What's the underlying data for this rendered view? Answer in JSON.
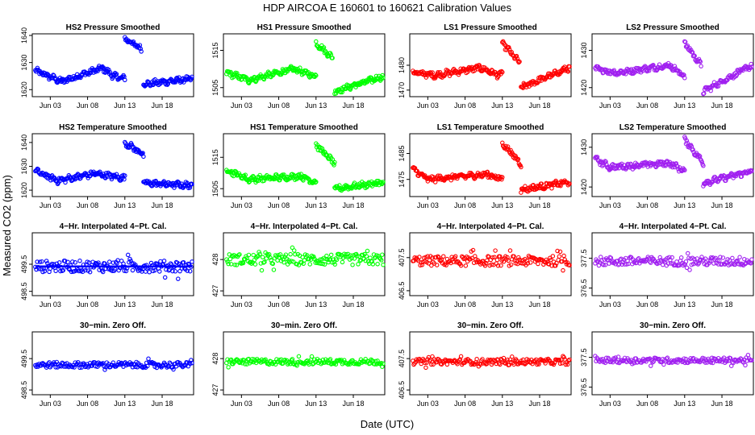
{
  "figure": {
    "title": "HDP   AIRCOA E   160601 to 160621   Calibration Values",
    "xlabel": "Date (UTC)",
    "ylabel": "Measured CO2 (ppm)"
  },
  "colors": {
    "blue": "#0000ff",
    "green": "#00ff00",
    "red": "#ff0000",
    "purple": "#a020f0"
  },
  "chart_data": [
    {
      "type": "scatter",
      "title": "HS2 Pressure Smoothed",
      "color": "blue",
      "ylim": [
        1618,
        1640
      ],
      "yticks": [
        1620,
        1630,
        1640
      ],
      "xticks": [
        "Jun 03",
        "Jun 08",
        "Jun 13",
        "Jun 18"
      ],
      "xtick_days": [
        3,
        8,
        13,
        18
      ],
      "xlim": [
        0.8,
        22
      ],
      "segments": [
        [
          1,
          1627,
          4.5,
          1623
        ],
        [
          4.5,
          1623,
          10,
          1628
        ],
        [
          10,
          1628,
          11.5,
          1625
        ],
        [
          11.5,
          1625,
          13,
          1624
        ],
        [
          13,
          1639,
          15.2,
          1635
        ],
        [
          15.5,
          1622,
          22,
          1624
        ]
      ]
    },
    {
      "type": "scatter",
      "title": "HS1 Pressure Smoothed",
      "color": "green",
      "ylim": [
        1503,
        1519
      ],
      "yticks": [
        1505,
        1515
      ],
      "xticks": [
        "Jun 03",
        "Jun 08",
        "Jun 13",
        "Jun 18"
      ],
      "xtick_days": [
        3,
        8,
        13,
        18
      ],
      "xlim": [
        0.8,
        22
      ],
      "segments": [
        [
          1,
          1509,
          4,
          1507
        ],
        [
          4,
          1507,
          10,
          1510
        ],
        [
          10,
          1510,
          13,
          1508
        ],
        [
          13,
          1517,
          15.2,
          1513
        ],
        [
          15.5,
          1504,
          22,
          1508
        ]
      ]
    },
    {
      "type": "scatter",
      "title": "LS1 Pressure Smoothed",
      "color": "red",
      "ylim": [
        1468,
        1492
      ],
      "yticks": [
        1470,
        1480
      ],
      "xticks": [
        "Jun 03",
        "Jun 08",
        "Jun 13",
        "Jun 18"
      ],
      "xtick_days": [
        3,
        8,
        13,
        18
      ],
      "xlim": [
        0.8,
        22
      ],
      "segments": [
        [
          1,
          1477,
          4,
          1476
        ],
        [
          4,
          1476,
          10,
          1479
        ],
        [
          10,
          1479,
          12.5,
          1476
        ],
        [
          12.5,
          1476,
          13,
          1477
        ],
        [
          13,
          1489,
          15.3,
          1481
        ],
        [
          15.5,
          1471,
          22,
          1479
        ]
      ]
    },
    {
      "type": "scatter",
      "title": "LS2 Pressure Smoothed",
      "color": "purple",
      "ylim": [
        1418,
        1434
      ],
      "yticks": [
        1420,
        1430
      ],
      "xticks": [
        "Jun 03",
        "Jun 08",
        "Jun 13",
        "Jun 18"
      ],
      "xtick_days": [
        3,
        8,
        13,
        18
      ],
      "xlim": [
        0.8,
        22
      ],
      "segments": [
        [
          1,
          1425,
          4,
          1424
        ],
        [
          4,
          1424,
          11,
          1426
        ],
        [
          11,
          1426,
          13,
          1423
        ],
        [
          13,
          1432,
          15.2,
          1426
        ],
        [
          15.5,
          1419,
          22,
          1426
        ]
      ]
    },
    {
      "type": "scatter",
      "title": "HS2 Temperature Smoothed",
      "color": "blue",
      "ylim": [
        1618,
        1643
      ],
      "yticks": [
        1620,
        1630,
        1640
      ],
      "xticks": [
        "Jun 03",
        "Jun 08",
        "Jun 13",
        "Jun 18"
      ],
      "xtick_days": [
        3,
        8,
        13,
        18
      ],
      "xlim": [
        0.8,
        22
      ],
      "segments": [
        [
          1,
          1628,
          4,
          1624
        ],
        [
          4,
          1624,
          9,
          1627
        ],
        [
          9,
          1627,
          13,
          1625
        ],
        [
          13,
          1640,
          15.5,
          1635
        ],
        [
          15.5,
          1623,
          22,
          1622
        ]
      ]
    },
    {
      "type": "scatter",
      "title": "HS1 Temperature Smoothed",
      "color": "green",
      "ylim": [
        1503,
        1522
      ],
      "yticks": [
        1505,
        1515
      ],
      "xticks": [
        "Jun 03",
        "Jun 08",
        "Jun 13",
        "Jun 18"
      ],
      "xtick_days": [
        3,
        8,
        13,
        18
      ],
      "xlim": [
        0.8,
        22
      ],
      "segments": [
        [
          1,
          1511,
          4,
          1508
        ],
        [
          4,
          1508,
          11,
          1509
        ],
        [
          11,
          1509,
          13,
          1507
        ],
        [
          13,
          1519,
          15.5,
          1513
        ],
        [
          15.5,
          1505,
          22,
          1507
        ]
      ]
    },
    {
      "type": "scatter",
      "title": "LS1 Temperature Smoothed",
      "color": "red",
      "ylim": [
        1469,
        1492
      ],
      "yticks": [
        1475,
        1485
      ],
      "xticks": [
        "Jun 03",
        "Jun 08",
        "Jun 13",
        "Jun 18"
      ],
      "xtick_days": [
        3,
        8,
        13,
        18
      ],
      "xlim": [
        0.8,
        22
      ],
      "segments": [
        [
          1,
          1479,
          3,
          1475
        ],
        [
          3,
          1475,
          11,
          1477
        ],
        [
          11,
          1477,
          13,
          1475
        ],
        [
          13,
          1489,
          15.5,
          1481
        ],
        [
          15.5,
          1471,
          22,
          1474
        ]
      ]
    },
    {
      "type": "scatter",
      "title": "LS2 Temperature Smoothed",
      "color": "purple",
      "ylim": [
        1418,
        1433
      ],
      "yticks": [
        1420,
        1430
      ],
      "xticks": [
        "Jun 03",
        "Jun 08",
        "Jun 13",
        "Jun 18"
      ],
      "xtick_days": [
        3,
        8,
        13,
        18
      ],
      "xlim": [
        0.8,
        22
      ],
      "segments": [
        [
          1,
          1427,
          3,
          1425
        ],
        [
          3,
          1425,
          11,
          1426
        ],
        [
          11,
          1426,
          13,
          1424
        ],
        [
          13,
          1432,
          15.5,
          1426
        ],
        [
          15.5,
          1421,
          22,
          1424
        ]
      ]
    },
    {
      "type": "scatter",
      "title": "4−Hr. Interpolated 4−Pt. Cal.",
      "color": "blue",
      "ylim": [
        498.4,
        500.6
      ],
      "yticks": [
        498.5,
        499.5
      ],
      "xticks": [
        "Jun 03",
        "Jun 08",
        "Jun 13",
        "Jun 18"
      ],
      "xtick_days": [
        3,
        8,
        13,
        18
      ],
      "xlim": [
        0.8,
        22
      ],
      "band": {
        "center": 499.42,
        "spread": 0.35,
        "range": [
          1,
          22
        ]
      },
      "line": 499.42
    },
    {
      "type": "scatter",
      "title": "4−Hr. Interpolated 4−Pt. Cal.",
      "color": "green",
      "ylim": [
        426.9,
        428.8
      ],
      "yticks": [
        427.0,
        428.0
      ],
      "xticks": [
        "Jun 03",
        "Jun 08",
        "Jun 13",
        "Jun 18"
      ],
      "xtick_days": [
        3,
        8,
        13,
        18
      ],
      "xlim": [
        0.8,
        22
      ],
      "band": {
        "center": 428.0,
        "spread": 0.3,
        "range": [
          1,
          22
        ]
      }
    },
    {
      "type": "scatter",
      "title": "4−Hr. Interpolated 4−Pt. Cal.",
      "color": "red",
      "ylim": [
        406.4,
        408.2
      ],
      "yticks": [
        406.5,
        407.5
      ],
      "xticks": [
        "Jun 03",
        "Jun 08",
        "Jun 13",
        "Jun 18"
      ],
      "xtick_days": [
        3,
        8,
        13,
        18
      ],
      "xlim": [
        0.8,
        22
      ],
      "band": {
        "center": 407.4,
        "spread": 0.25,
        "range": [
          1,
          22
        ]
      }
    },
    {
      "type": "scatter",
      "title": "4−Hr. Interpolated 4−Pt. Cal.",
      "color": "purple",
      "ylim": [
        376.3,
        378.3
      ],
      "yticks": [
        376.5,
        377.5
      ],
      "xticks": [
        "Jun 03",
        "Jun 08",
        "Jun 13",
        "Jun 18"
      ],
      "xtick_days": [
        3,
        8,
        13,
        18
      ],
      "xlim": [
        0.8,
        22
      ],
      "band": {
        "center": 377.4,
        "spread": 0.25,
        "range": [
          1,
          22
        ]
      }
    },
    {
      "type": "scatter",
      "title": "30−min. Zero Off.",
      "color": "blue",
      "ylim": [
        498.4,
        500.3
      ],
      "yticks": [
        498.5,
        499.5
      ],
      "xticks": [
        "Jun 03",
        "Jun 08",
        "Jun 13",
        "Jun 18"
      ],
      "xtick_days": [
        3,
        8,
        13,
        18
      ],
      "xlim": [
        0.8,
        22
      ],
      "band": {
        "center": 499.3,
        "spread": 0.15,
        "range": [
          1,
          22
        ]
      }
    },
    {
      "type": "scatter",
      "title": "30−min. Zero Off.",
      "color": "green",
      "ylim": [
        426.9,
        428.8
      ],
      "yticks": [
        427.0,
        428.0
      ],
      "xticks": [
        "Jun 03",
        "Jun 08",
        "Jun 13",
        "Jun 18"
      ],
      "xtick_days": [
        3,
        8,
        13,
        18
      ],
      "xlim": [
        0.8,
        22
      ],
      "band": {
        "center": 427.9,
        "spread": 0.15,
        "range": [
          1,
          22
        ]
      }
    },
    {
      "type": "scatter",
      "title": "30−min. Zero Off.",
      "color": "red",
      "ylim": [
        406.4,
        408.3
      ],
      "yticks": [
        406.5,
        407.5
      ],
      "xticks": [
        "Jun 03",
        "Jun 08",
        "Jun 13",
        "Jun 18"
      ],
      "xtick_days": [
        3,
        8,
        13,
        18
      ],
      "xlim": [
        0.8,
        22
      ],
      "band": {
        "center": 407.4,
        "spread": 0.15,
        "range": [
          1,
          22
        ]
      }
    },
    {
      "type": "scatter",
      "title": "30−min. Zero Off.",
      "color": "purple",
      "ylim": [
        376.3,
        378.3
      ],
      "yticks": [
        376.5,
        377.5
      ],
      "xticks": [
        "Jun 03",
        "Jun 08",
        "Jun 13",
        "Jun 18"
      ],
      "xtick_days": [
        3,
        8,
        13,
        18
      ],
      "xlim": [
        0.8,
        22
      ],
      "band": {
        "center": 377.4,
        "spread": 0.15,
        "range": [
          1,
          22
        ]
      }
    }
  ]
}
